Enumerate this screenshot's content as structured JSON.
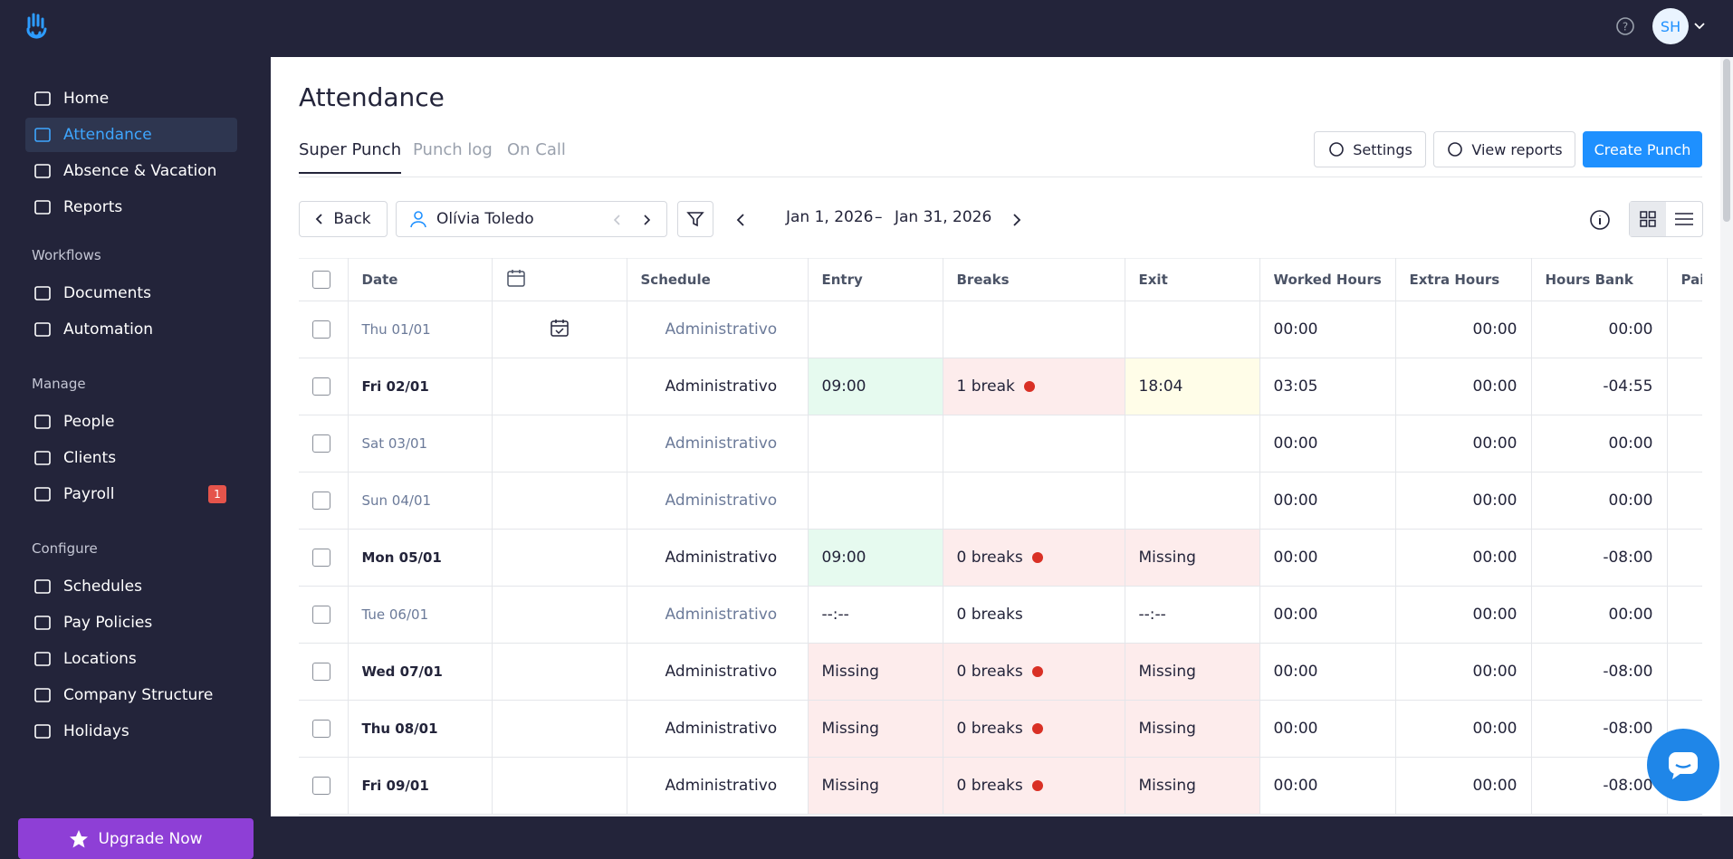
{
  "header": {
    "avatar": "SH"
  },
  "sidebar": {
    "items": [
      {
        "label": "Home"
      },
      {
        "label": "Attendance",
        "active": true
      },
      {
        "label": "Absence & Vacation"
      },
      {
        "label": "Reports"
      }
    ],
    "sections": [
      {
        "title": "Workflows",
        "items": [
          {
            "label": "Documents"
          },
          {
            "label": "Automation"
          }
        ]
      },
      {
        "title": "Manage",
        "items": [
          {
            "label": "People"
          },
          {
            "label": "Clients"
          },
          {
            "label": "Payroll",
            "badge": "1"
          }
        ]
      },
      {
        "title": "Configure",
        "items": [
          {
            "label": "Schedules"
          },
          {
            "label": "Pay Policies"
          },
          {
            "label": "Locations"
          },
          {
            "label": "Company Structure"
          },
          {
            "label": "Holidays"
          }
        ]
      }
    ],
    "upgrade": "Upgrade Now"
  },
  "page": {
    "title": "Attendance",
    "tabs": [
      "Super Punch",
      "Punch log",
      "On Call"
    ],
    "buttons": [
      "Settings",
      "View reports",
      "Create Punch"
    ]
  },
  "toolbar": {
    "back": "Back",
    "employee": "Olívia Toledo",
    "date_start": "Jan 1, 2026",
    "date_sep": "–",
    "date_end": "Jan 31, 2026"
  },
  "table": {
    "columns": [
      "Date",
      null,
      "Schedule",
      "Entry",
      "Breaks",
      "Exit",
      "Worked Hours",
      "Extra Hours",
      "Hours Bank",
      "Pai"
    ],
    "rows": [
      {
        "date": "Thu 01/01",
        "schedule": "Administrativo",
        "entry": null,
        "breaks": null,
        "exit": null,
        "worked": "00:00",
        "extra": "00:00",
        "bank": "00:00",
        "muted": true,
        "colors": {
          "entry": null,
          "breaks": null,
          "exit": null
        }
      },
      {
        "date": "Fri 02/01",
        "schedule": "Administrativo",
        "entry": "09:00",
        "breaks": "1 break",
        "exit": "18:04",
        "worked": "03:05",
        "extra": "00:00",
        "bank": "-04:55",
        "muted": false,
        "colors": {
          "entry": "#e6faef",
          "breaks": "#fdecec",
          "exit": "#fffde8"
        }
      },
      {
        "date": "Sat 03/01",
        "schedule": "Administrativo",
        "entry": null,
        "breaks": null,
        "exit": null,
        "worked": "00:00",
        "extra": "00:00",
        "bank": "00:00",
        "muted": true,
        "colors": {
          "entry": null,
          "breaks": null,
          "exit": null
        }
      },
      {
        "date": "Sun 04/01",
        "schedule": "Administrativo",
        "entry": null,
        "breaks": null,
        "exit": null,
        "worked": "00:00",
        "extra": "00:00",
        "bank": "00:00",
        "muted": true,
        "colors": {
          "entry": null,
          "breaks": null,
          "exit": null
        }
      },
      {
        "date": "Mon 05/01",
        "schedule": "Administrativo",
        "entry": "09:00",
        "breaks": "0 breaks",
        "exit": "Missing",
        "worked": "00:00",
        "extra": "00:00",
        "bank": "-08:00",
        "muted": false,
        "colors": {
          "entry": "#e6faef",
          "breaks": "#fdecec",
          "exit": "#fdecec"
        }
      },
      {
        "date": "Tue 06/01",
        "schedule": "Administrativo",
        "entry": "--:--",
        "breaks": "0 breaks",
        "exit": "--:--",
        "worked": "00:00",
        "extra": "00:00",
        "bank": "00:00",
        "muted": true,
        "colors": {
          "entry": null,
          "breaks": null,
          "exit": null
        }
      },
      {
        "date": "Wed 07/01",
        "schedule": "Administrativo",
        "entry": "Missing",
        "breaks": "0 breaks",
        "exit": "Missing",
        "worked": "00:00",
        "extra": "00:00",
        "bank": "-08:00",
        "muted": false,
        "colors": {
          "entry": "#fdecec",
          "breaks": "#fdecec",
          "exit": "#fdecec"
        }
      },
      {
        "date": "Thu 08/01",
        "schedule": "Administrativo",
        "entry": "Missing",
        "breaks": "0 breaks",
        "exit": "Missing",
        "worked": "00:00",
        "extra": "00:00",
        "bank": "-08:00",
        "muted": false,
        "colors": {
          "entry": "#fdecec",
          "breaks": "#fdecec",
          "exit": "#fdecec"
        }
      },
      {
        "date": "Fri 09/01",
        "schedule": "Administrativo",
        "entry": "Missing",
        "breaks": "0 breaks",
        "exit": "Missing",
        "worked": "00:00",
        "extra": "00:00",
        "bank": "-08:00",
        "muted": false,
        "colors": {
          "entry": "#fdecec",
          "breaks": "#fdecec",
          "exit": "#fdecec"
        }
      }
    ]
  }
}
